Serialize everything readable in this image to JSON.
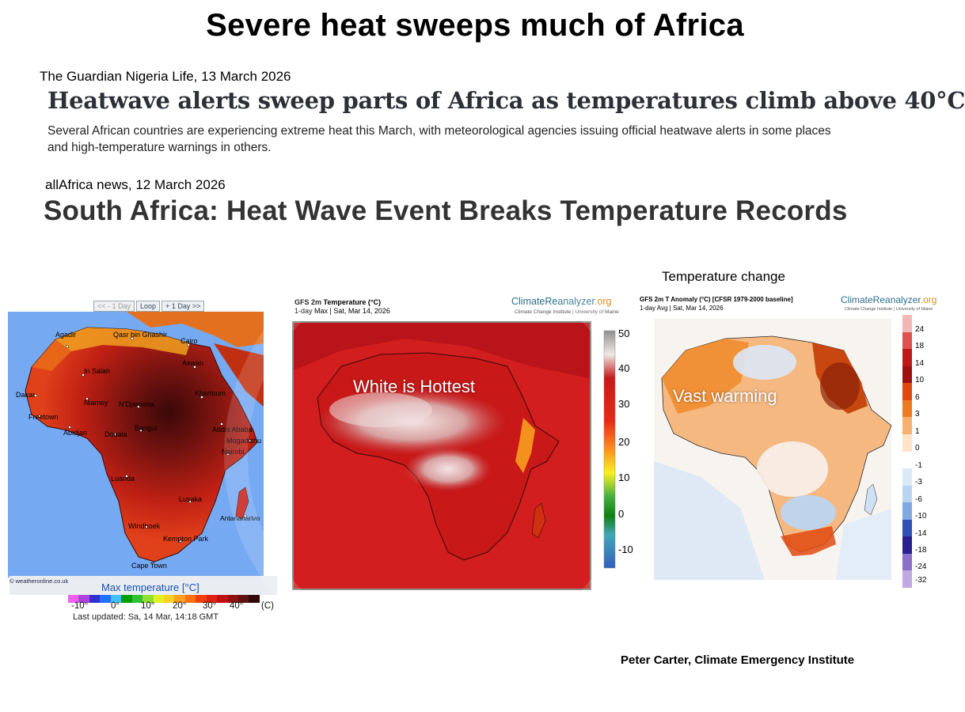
{
  "title": "Severe heat sweeps much of Africa",
  "articles": [
    {
      "source": "The Guardian Nigeria Life, 13 March 2026",
      "headline": "Heatwave alerts sweep parts of Africa as temperatures climb above 40°C",
      "summary": "Several African countries are experiencing extreme heat this March, with meteorological agencies issuing official heatwave alerts in some places and high-temperature warnings in others."
    },
    {
      "source": "allAfrica news, 12 March 2026",
      "headline": "South Africa: Heat Wave Event Breaks Temperature Records"
    }
  ],
  "map_left": {
    "controls": [
      "<< - 1 Day",
      "Loop",
      "+ 1 Day >>"
    ],
    "cities": [
      "Agadir",
      "Qasr bin Ghashir",
      "Cairo",
      "In Salah",
      "Aswan",
      "Dakar",
      "Niamey",
      "Khartoum",
      "N'Djamena",
      "Freetown",
      "Addis Ababa",
      "Abidjan",
      "Douala",
      "Bangui",
      "Mogadishu",
      "Nairobi",
      "Luanda",
      "Lusaka",
      "Antananarivo",
      "Windhoek",
      "Kempton Park",
      "Cape Town"
    ],
    "credit": "© weatheronline.co.uk",
    "legend_title": "Max temperature [°C]",
    "legend_ticks": [
      "-10°",
      "0°",
      "10°",
      "20°",
      "30°",
      "40°",
      "(C)"
    ],
    "legend_colors": [
      "#f060f0",
      "#b040e0",
      "#3030d0",
      "#2070ff",
      "#40c0ff",
      "#00a000",
      "#30c030",
      "#90e030",
      "#e0f020",
      "#ffd020",
      "#ffa020",
      "#ff7010",
      "#f04010",
      "#e02010",
      "#c01010",
      "#901010",
      "#601010",
      "#300808"
    ],
    "updated": "Last updated: Sa, 14 Mar, 14:18 GMT"
  },
  "map_middle": {
    "title": "GFS 2m Temperature (°C)",
    "subtitle": "1-day Max | Sat, Mar 14, 2026",
    "logo": "ClimateReanalyzer",
    "logo_suffix": ".org",
    "logo_sub": "Climate Change Institute | University of Maine",
    "annotation": "White is Hottest",
    "scale_ticks": [
      "50",
      "40",
      "30",
      "20",
      "10",
      "0",
      "-10"
    ]
  },
  "map_right": {
    "caption": "Temperature change",
    "title": "GFS 2m T Anomaly (°C) [CFSR 1979-2000 baseline]",
    "subtitle": "1-day Avg | Sat, Mar 14, 2026",
    "logo": "ClimateReanalyzer",
    "logo_suffix": ".org",
    "logo_sub": "Climate Change Institute | University of Maine",
    "annotation": "Vast warming",
    "scale_ticks": [
      "24",
      "18",
      "14",
      "10",
      "6",
      "3",
      "1",
      "0",
      "-1",
      "-3",
      "-6",
      "-10",
      "-14",
      "-18",
      "-24",
      "-32"
    ],
    "scale_colors": [
      "#f2b8b8",
      "#e05050",
      "#c01818",
      "#a01010",
      "#e04a10",
      "#f07a20",
      "#f8b070",
      "#fde3c8",
      "#ffffff",
      "#dceaf8",
      "#b8d4f0",
      "#7fa9e0",
      "#3050b8",
      "#2a1f90",
      "#8a70c8",
      "#c0a8e0"
    ]
  },
  "credit": "Peter Carter, Climate Emergency Institute"
}
